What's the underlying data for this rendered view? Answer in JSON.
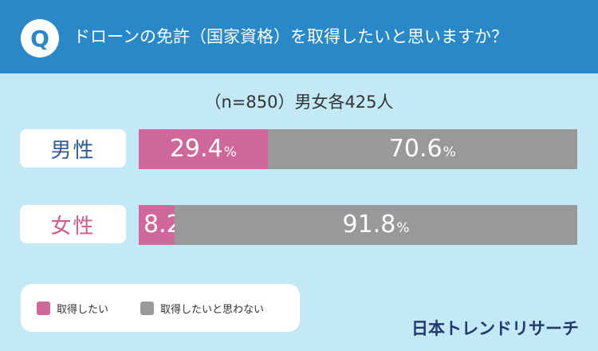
{
  "header": {
    "badge": "Q",
    "title": "ドローンの免許（国家資格）を取得したいと思いますか？"
  },
  "sample_note": "（n=850）男女各425人",
  "brand": "日本トレンドリサーチ",
  "colors": {
    "yes": "#d0679a",
    "no": "#999999",
    "header": "#2888c8",
    "background": "#c3e8f6"
  },
  "chart_data": {
    "type": "bar",
    "orientation": "horizontal",
    "stacked": true,
    "categories": [
      "男性",
      "女性"
    ],
    "series": [
      {
        "name": "取得したい",
        "values": [
          29.4,
          8.2
        ]
      },
      {
        "name": "取得したいと思わない",
        "values": [
          70.6,
          91.8
        ]
      }
    ],
    "unit": "%",
    "xlim": [
      0,
      100
    ],
    "legend": "bottom-left"
  }
}
